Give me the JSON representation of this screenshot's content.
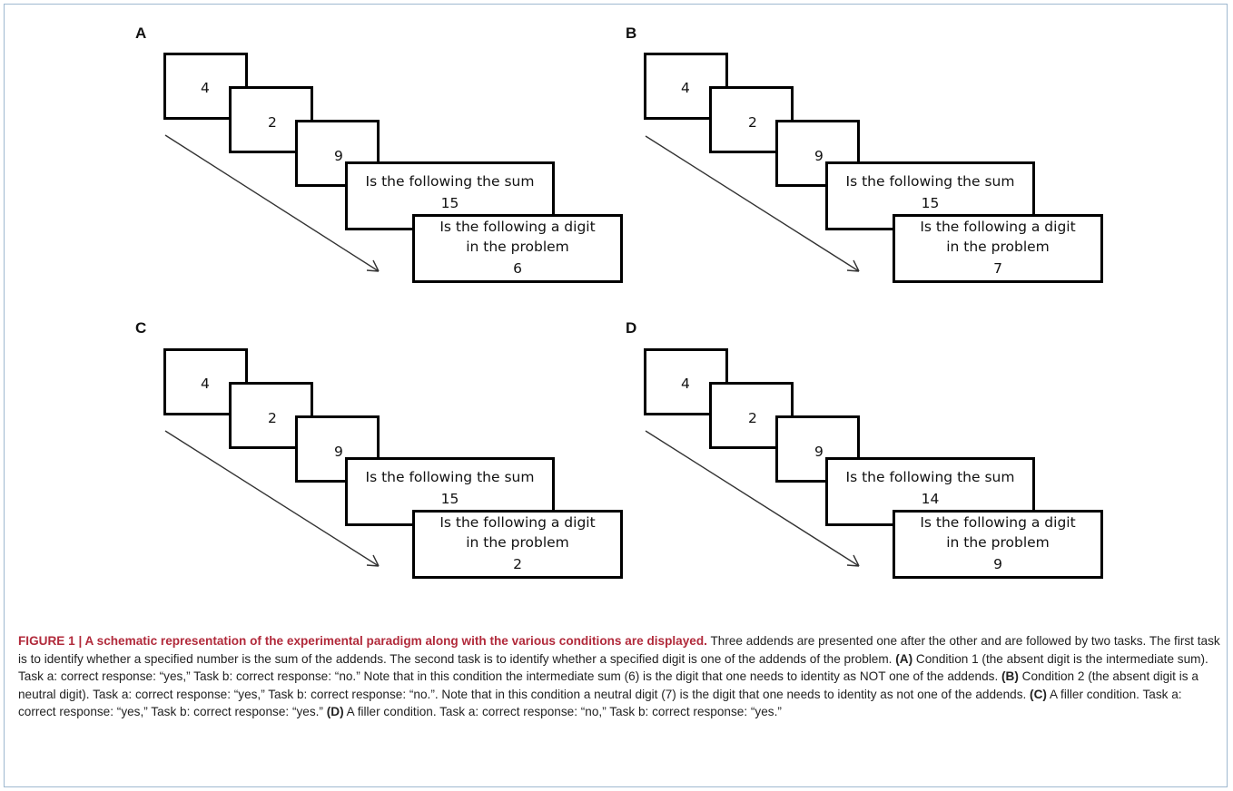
{
  "panels": [
    {
      "letter": "A",
      "digits": [
        "4",
        "2",
        "9"
      ],
      "sum_question": "Is the following the sum",
      "sum_value": "15",
      "digit_question_line1": "Is the following a digit",
      "digit_question_line2": "in the problem",
      "digit_value": "6"
    },
    {
      "letter": "B",
      "digits": [
        "4",
        "2",
        "9"
      ],
      "sum_question": "Is the following the sum",
      "sum_value": "15",
      "digit_question_line1": "Is the following a digit",
      "digit_question_line2": "in the problem",
      "digit_value": "7"
    },
    {
      "letter": "C",
      "digits": [
        "4",
        "2",
        "9"
      ],
      "sum_question": "Is the following the sum",
      "sum_value": "15",
      "digit_question_line1": "Is the following a digit",
      "digit_question_line2": "in the problem",
      "digit_value": "2"
    },
    {
      "letter": "D",
      "digits": [
        "4",
        "2",
        "9"
      ],
      "sum_question": "Is the following the sum",
      "sum_value": "14",
      "digit_question_line1": "Is the following a digit",
      "digit_question_line2": "in the problem",
      "digit_value": "9"
    }
  ],
  "caption": {
    "label": "FIGURE 1 | A schematic representation of the experimental paradigm along with the various conditions are displayed.",
    "intro": " Three addends are presented one after the other and are followed by two tasks. The first task is to identify whether a specified number is the sum of the addends. The second task is to identify whether a specified digit is one of the addends of the problem. ",
    "a_tag": "(A)",
    "a_text": " Condition 1 (the absent digit is the intermediate sum). Task a: correct response: “yes,” Task b: correct response: “no.” Note that in this condition the intermediate sum (6) is the digit that one needs to identity as NOT one of the addends. ",
    "b_tag": "(B)",
    "b_text": " Condition 2 (the absent digit is a neutral digit). Task a: correct response: “yes,” Task b: correct response: “no.”. Note that in this condition a neutral digit (7) is the digit that one needs to identity as not one of the addends. ",
    "c_tag": "(C)",
    "c_text": " A filler condition. Task a: correct response: “yes,” Task b: correct response: “yes.” ",
    "d_tag": "(D)",
    "d_text": " A filler condition. Task a: correct response: “no,” Task b: correct response: “yes.”"
  }
}
